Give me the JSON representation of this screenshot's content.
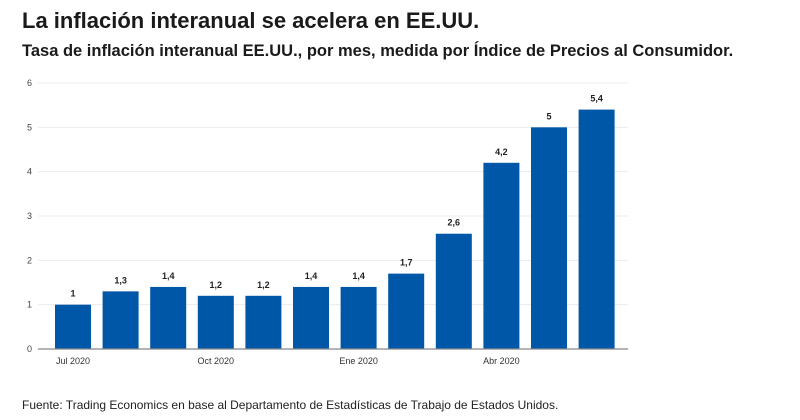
{
  "header": {
    "title": "La inflación interanual se acelera en EE.UU.",
    "subtitle": "Tasa de inflación interanual EE.UU., por mes, medida por Índice de Precios al Consumidor."
  },
  "footer": {
    "source": "Fuente: Trading Economics en base al Departamento de Estadísticas de Trabajo de Estados Unidos."
  },
  "chart_data": {
    "type": "bar",
    "title": "",
    "xlabel": "",
    "ylabel": "",
    "ylim": [
      0,
      6
    ],
    "yticks": [
      0,
      1,
      2,
      3,
      4,
      5,
      6
    ],
    "grid": true,
    "bar_color": "#0057a8",
    "values": [
      1,
      1.3,
      1.4,
      1.2,
      1.2,
      1.4,
      1.4,
      1.7,
      2.6,
      4.2,
      5,
      5.4
    ],
    "data_labels": [
      "1",
      "1,3",
      "1,4",
      "1,2",
      "1,2",
      "1,4",
      "1,4",
      "1,7",
      "2,6",
      "4,2",
      "5",
      "5,4"
    ],
    "xtick_labels": [
      {
        "index": 0,
        "label": "Jul 2020"
      },
      {
        "index": 3,
        "label": "Oct 2020"
      },
      {
        "index": 6,
        "label": "Ene 2020"
      },
      {
        "index": 9,
        "label": "Abr 2020"
      }
    ]
  }
}
